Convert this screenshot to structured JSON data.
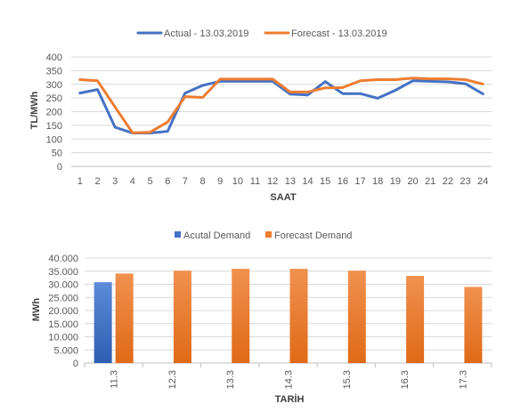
{
  "chart_data": [
    {
      "type": "line",
      "xlabel": "SAAT",
      "ylabel": "TL/MWh",
      "ylim": [
        0,
        400
      ],
      "yticks": [
        0,
        50,
        100,
        150,
        200,
        250,
        300,
        350,
        400
      ],
      "legend_position": "top",
      "grid": true,
      "x": [
        "1",
        "2",
        "3",
        "4",
        "5",
        "6",
        "7",
        "8",
        "9",
        "10",
        "11",
        "12",
        "13",
        "14",
        "15",
        "16",
        "17",
        "18",
        "19",
        "20",
        "21",
        "22",
        "23",
        "24"
      ],
      "series": [
        {
          "name": "Actual - 13.03.2019",
          "color": "#4472C4",
          "values": [
            268,
            281,
            143,
            122,
            122,
            128,
            268,
            296,
            311,
            311,
            311,
            311,
            264,
            261,
            310,
            266,
            266,
            249,
            278,
            313,
            311,
            309,
            302,
            265
          ]
        },
        {
          "name": "Forecast - 13.03.2019",
          "color": "#ED7D31",
          "values": [
            317,
            313,
            217,
            123,
            125,
            162,
            255,
            252,
            319,
            319,
            319,
            319,
            272,
            272,
            287,
            288,
            313,
            317,
            317,
            323,
            320,
            320,
            317,
            301
          ]
        }
      ]
    },
    {
      "type": "bar",
      "xlabel": "TARİH",
      "ylabel": "MWh",
      "ylim": [
        0,
        40000
      ],
      "yticks": [
        "0",
        "5.000",
        "10.000",
        "15.000",
        "20.000",
        "25.000",
        "30.000",
        "35.000",
        "40.000"
      ],
      "legend_position": "top",
      "grid": true,
      "categories": [
        "11.3",
        "12.3",
        "13.3",
        "14.3",
        "15.3",
        "16.3",
        "17.3"
      ],
      "series": [
        {
          "name": "Acutal Demand",
          "color": "#4472C4",
          "values": [
            30800,
            null,
            null,
            null,
            null,
            null,
            null
          ]
        },
        {
          "name": "Forecast Demand",
          "color": "#ED7D31",
          "values": [
            34100,
            35200,
            35900,
            35900,
            35200,
            33200,
            29000
          ]
        }
      ]
    }
  ]
}
